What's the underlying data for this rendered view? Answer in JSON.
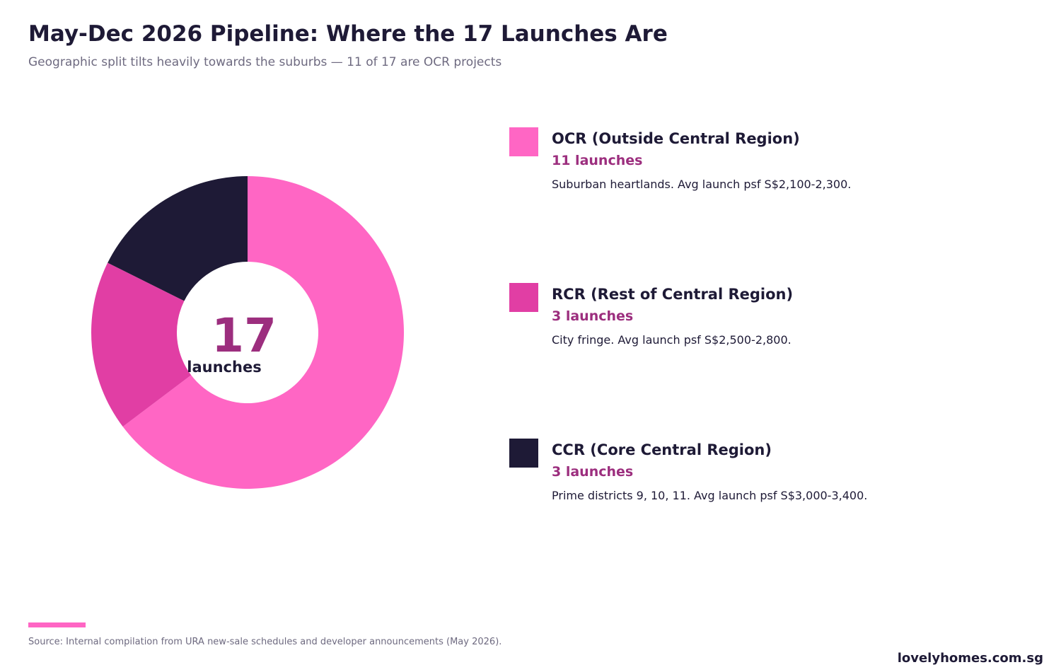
{
  "title": "May-Dec 2026 Pipeline: Where the 17 Launches Are",
  "subtitle": "Geographic split tilts heavily towards the suburbs — 11 of 17 are OCR projects",
  "chart_data": {
    "type": "pie",
    "variant": "donut",
    "title": "May-Dec 2026 Pipeline: Where the 17 Launches Are",
    "center_value": "17",
    "center_label": "launches",
    "total": 17,
    "categories": [
      "OCR (Outside Central Region)",
      "RCR (Rest of Central Region)",
      "CCR (Core Central Region)"
    ],
    "values": [
      11,
      3,
      3
    ],
    "colors": [
      "#ff66c4",
      "#e13ea4",
      "#1e1a36"
    ],
    "legend_placement": "right"
  },
  "legend": [
    {
      "name": "OCR (Outside Central Region)",
      "count": "11 launches",
      "desc": "Suburban heartlands. Avg launch psf S$2,100-2,300.",
      "color": "#ff66c4"
    },
    {
      "name": "RCR (Rest of Central Region)",
      "count": "3 launches",
      "desc": "City fringe. Avg launch psf S$2,500-2,800.",
      "color": "#e13ea4"
    },
    {
      "name": "CCR (Core Central Region)",
      "count": "3 launches",
      "desc": "Prime districts 9, 10, 11. Avg launch psf S$3,000-3,400.",
      "color": "#1e1a36"
    }
  ],
  "footer": {
    "source": "Source: Internal compilation from URA new-sale schedules and developer announcements (May 2026).",
    "brand": "lovelyhomes.com.sg",
    "accent_color": "#ff66c4"
  },
  "colors": {
    "text_dark": "#1e1a36",
    "text_muted": "#6e6a80",
    "count_accent": "#9c2e7e"
  }
}
